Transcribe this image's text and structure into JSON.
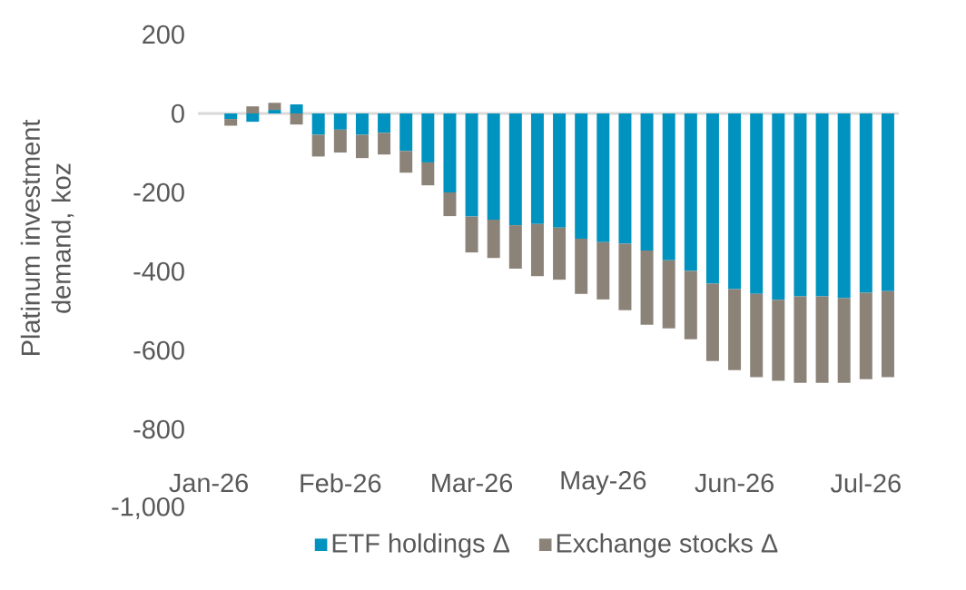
{
  "chart_data": {
    "type": "bar",
    "ylabel": "Platinum investment demand, koz",
    "categories": [
      "Jan-26",
      null,
      null,
      null,
      null,
      null,
      "Feb-26",
      null,
      null,
      null,
      null,
      null,
      "Mar-26",
      null,
      null,
      null,
      null,
      null,
      "May-26",
      null,
      null,
      null,
      null,
      null,
      "Jun-26",
      null,
      null,
      null,
      null,
      null,
      "Jul-26",
      null
    ],
    "series": [
      {
        "name": "ETF holdings Δ",
        "color": "#0093bf",
        "values": [
          null,
          -14,
          -21,
          9,
          23,
          -54,
          -41,
          -54,
          -49,
          -95,
          -124,
          -200,
          -261,
          -269,
          -283,
          -280,
          -289,
          -317,
          -326,
          -330,
          -347,
          -372,
          -399,
          -431,
          -445,
          -457,
          -472,
          -463,
          -463,
          -468,
          -454,
          -450
        ]
      },
      {
        "name": "Exchange stocks Δ",
        "color": "#8c8378",
        "values": [
          null,
          -17,
          18,
          18,
          -28,
          -55,
          -58,
          -59,
          -55,
          -55,
          -58,
          -60,
          -91,
          -97,
          -110,
          -132,
          -132,
          -140,
          -145,
          -168,
          -188,
          -172,
          -173,
          -196,
          -205,
          -211,
          -205,
          -219,
          -219,
          -214,
          -219,
          -218
        ]
      }
    ],
    "stacked": true,
    "legend": "bottom",
    "ylim": [
      -1000,
      200
    ],
    "yticks": [
      {
        "value": -1000,
        "label": "-1,000"
      },
      -800,
      -600,
      -400,
      -200,
      0,
      200
    ]
  }
}
